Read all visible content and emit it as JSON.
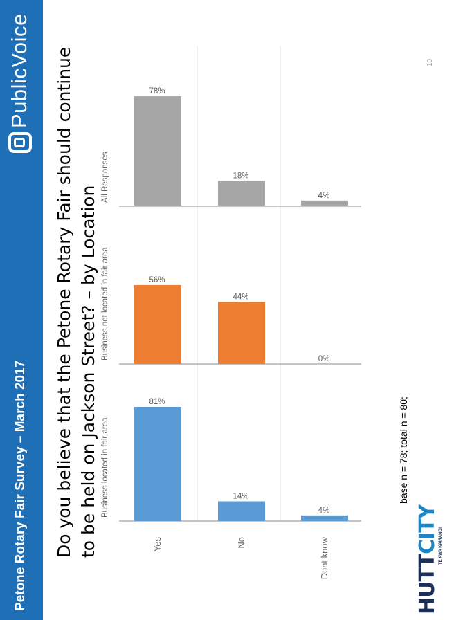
{
  "header": {
    "title": "Petone Rotary Fair Survey – March 2017",
    "logo_text": "PublicVoice",
    "bar_color": "#1f6fb6"
  },
  "question": "Do you believe that the Petone Rotary Fair should continue to be held on Jackson Street? – by Location",
  "footer": {
    "base_note": "base n = 78; total n = 80;",
    "page_number": "10",
    "hutt_logo_main": "HUTT",
    "hutt_logo_city": "CITY",
    "hutt_logo_sub": "TE AWA KAIRANGI"
  },
  "chart_data": {
    "type": "bar",
    "categories": [
      "Yes",
      "No",
      "Dont know"
    ],
    "series": [
      {
        "name": "Business located in fair area",
        "values": [
          81,
          14,
          4
        ],
        "labels": [
          "81%",
          "14%",
          "4%"
        ],
        "color": "#5b9bd5"
      },
      {
        "name": "Business not located in fair area",
        "values": [
          56,
          44,
          0
        ],
        "labels": [
          "56%",
          "44%",
          "0%"
        ],
        "color": "#ed7d31"
      },
      {
        "name": "All Responses",
        "values": [
          78,
          18,
          4
        ],
        "labels": [
          "78%",
          "18%",
          "4%"
        ],
        "color": "#a5a5a5"
      }
    ],
    "ylim": [
      0,
      100
    ],
    "grid": false,
    "legend": "panel titles above each panel"
  }
}
